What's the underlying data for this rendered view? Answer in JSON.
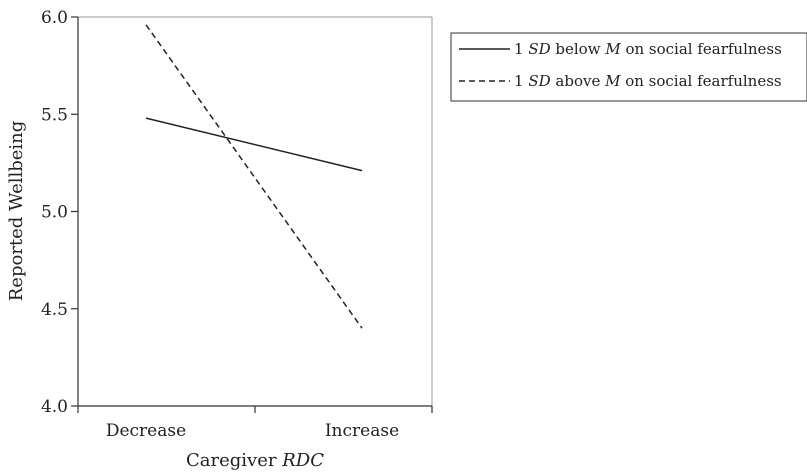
{
  "chart_data": {
    "type": "line",
    "categories": [
      "Decrease",
      "Increase"
    ],
    "series": [
      {
        "name": "1 SD below M on social fearfulness",
        "values": [
          5.48,
          5.21
        ],
        "dash": "solid"
      },
      {
        "name": "1 SD above M on social fearfulness",
        "values": [
          5.96,
          4.4
        ],
        "dash": "dashed"
      }
    ],
    "ylim": [
      4.0,
      6.0
    ],
    "yticks": [
      "4.0",
      "4.5",
      "5.0",
      "5.5",
      "6.0"
    ],
    "ylabel": "Reported Wellbeing",
    "xlabel": {
      "prefix": "Caregiver ",
      "italic": "RDC"
    },
    "legend_position": "top-right",
    "legend": [
      {
        "segments": [
          {
            "t": "1 ",
            "i": false
          },
          {
            "t": "SD",
            "i": true
          },
          {
            "t": " below ",
            "i": false
          },
          {
            "t": "M",
            "i": true
          },
          {
            "t": " on social fearfulness",
            "i": false
          }
        ]
      },
      {
        "segments": [
          {
            "t": "1 ",
            "i": false
          },
          {
            "t": "SD",
            "i": true
          },
          {
            "t": " above ",
            "i": false
          },
          {
            "t": "M",
            "i": true
          },
          {
            "t": " on social fearfulness",
            "i": false
          }
        ]
      }
    ],
    "grid": false,
    "colors": {
      "line": "#222222",
      "axis": "#333333",
      "frame": "#9a9a9a"
    }
  }
}
